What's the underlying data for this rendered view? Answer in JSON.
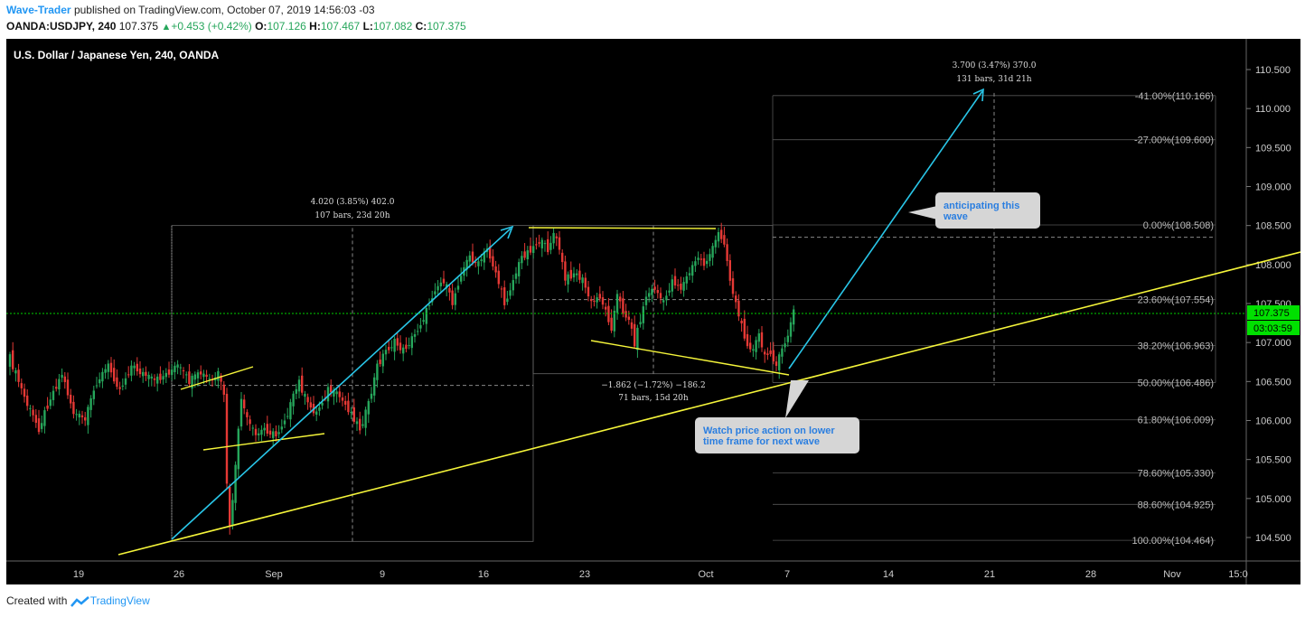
{
  "header": {
    "author": "Wave-Trader",
    "published_text": "published on TradingView.com, October 07, 2019 14:56:03 -03",
    "symbol": "OANDA:USDJPY, 240",
    "last": "107.375",
    "change": "+0.453 (+0.42%)",
    "open_label": "O:",
    "open": "107.126",
    "high_label": "H:",
    "high": "107.467",
    "low_label": "L:",
    "low": "107.082",
    "close_label": "C:",
    "close": "107.375"
  },
  "footer": {
    "created_with": "Created with",
    "brand": "TradingView"
  },
  "colors": {
    "background": "#000000",
    "up": "#26a65b",
    "down": "#e53935",
    "trend": "#f5f53a",
    "arrow": "#29c6e8",
    "price_tag": "#00e000"
  },
  "chart_data": {
    "type": "candlestick",
    "title": "U.S. Dollar / Japanese Yen, 240, OANDA",
    "y_ticks": [
      "104.500",
      "105.000",
      "105.500",
      "106.000",
      "106.500",
      "107.000",
      "107.500",
      "108.000",
      "108.500",
      "109.000",
      "109.500",
      "110.000",
      "110.500"
    ],
    "x_ticks": [
      "19",
      "26",
      "Sep",
      "9",
      "16",
      "23",
      "Oct",
      "7",
      "14",
      "21",
      "28",
      "Nov",
      "15:0"
    ],
    "ylim": [
      104.0,
      110.8
    ],
    "last_price": "107.375",
    "countdown": "03:03:59",
    "fib_levels": [
      {
        "label": "-41.00%(110.166)",
        "value": 110.166
      },
      {
        "label": "-27.00%(109.600)",
        "value": 109.6
      },
      {
        "label": "0.00%(108.508)",
        "value": 108.508
      },
      {
        "label": "23.60%(107.554)",
        "value": 107.554
      },
      {
        "label": "38.20%(106.963)",
        "value": 106.963
      },
      {
        "label": "50.00%(106.486)",
        "value": 106.486
      },
      {
        "label": "61.80%(106.009)",
        "value": 106.009
      },
      {
        "label": "78.60%(105.330)",
        "value": 105.33
      },
      {
        "label": "88.60%(104.925)",
        "value": 104.925
      },
      {
        "label": "100.00%(104.464)",
        "value": 104.464
      }
    ],
    "measures": [
      {
        "line1": "4.020 (3.85%) 402.0",
        "line2": "107 bars, 23d 20h"
      },
      {
        "line1": "−1.862 (−1.72%) −186.2",
        "line2": "71 bars, 15d 20h"
      },
      {
        "line1": "3.700 (3.47%) 370.0",
        "line2": "131 bars, 31d 21h"
      }
    ],
    "callouts": [
      {
        "text1": "anticipating this",
        "text2": "wave"
      },
      {
        "text1": "Watch price action on lower",
        "text2": "time frame for next wave"
      }
    ],
    "candle_path": [
      [
        0,
        106.8
      ],
      [
        6,
        106.2
      ],
      [
        10,
        105.9
      ],
      [
        14,
        106.3
      ],
      [
        18,
        106.6
      ],
      [
        22,
        106.1
      ],
      [
        26,
        106.0
      ],
      [
        30,
        106.5
      ],
      [
        34,
        106.7
      ],
      [
        38,
        106.4
      ],
      [
        42,
        106.7
      ],
      [
        46,
        106.6
      ],
      [
        50,
        106.5
      ],
      [
        54,
        106.6
      ],
      [
        58,
        106.7
      ],
      [
        62,
        106.5
      ],
      [
        66,
        106.6
      ],
      [
        70,
        106.5
      ],
      [
        72,
        106.6
      ],
      [
        74,
        106.3
      ],
      [
        75,
        105.2
      ],
      [
        76,
        104.6
      ],
      [
        78,
        105.4
      ],
      [
        80,
        106.3
      ],
      [
        82,
        106.0
      ],
      [
        85,
        105.8
      ],
      [
        88,
        105.9
      ],
      [
        92,
        105.8
      ],
      [
        96,
        106.1
      ],
      [
        100,
        106.5
      ],
      [
        103,
        106.2
      ],
      [
        106,
        106.1
      ],
      [
        110,
        106.4
      ],
      [
        114,
        106.3
      ],
      [
        118,
        106.1
      ],
      [
        121,
        105.9
      ],
      [
        124,
        106.2
      ],
      [
        127,
        106.7
      ],
      [
        130,
        106.9
      ],
      [
        133,
        107.0
      ],
      [
        136,
        106.9
      ],
      [
        140,
        107.1
      ],
      [
        144,
        107.4
      ],
      [
        147,
        107.7
      ],
      [
        150,
        107.8
      ],
      [
        153,
        107.5
      ],
      [
        156,
        107.9
      ],
      [
        159,
        108.1
      ],
      [
        162,
        108.0
      ],
      [
        165,
        108.2
      ],
      [
        168,
        107.9
      ],
      [
        171,
        107.5
      ],
      [
        174,
        107.8
      ],
      [
        177,
        108.1
      ],
      [
        180,
        108.2
      ],
      [
        183,
        108.3
      ],
      [
        186,
        108.2
      ],
      [
        188,
        108.4
      ],
      [
        190,
        108.2
      ],
      [
        192,
        107.8
      ],
      [
        195,
        107.9
      ],
      [
        198,
        107.8
      ],
      [
        201,
        107.5
      ],
      [
        204,
        107.6
      ],
      [
        206,
        107.4
      ],
      [
        208,
        107.2
      ],
      [
        210,
        107.6
      ],
      [
        212,
        107.4
      ],
      [
        214,
        107.3
      ],
      [
        216,
        107.0
      ],
      [
        218,
        107.3
      ],
      [
        220,
        107.6
      ],
      [
        223,
        107.7
      ],
      [
        226,
        107.5
      ],
      [
        229,
        107.8
      ],
      [
        232,
        107.7
      ],
      [
        235,
        107.9
      ],
      [
        238,
        108.1
      ],
      [
        240,
        108.0
      ],
      [
        243,
        108.2
      ],
      [
        245,
        108.4
      ],
      [
        247,
        108.3
      ],
      [
        249,
        107.8
      ],
      [
        251,
        107.5
      ],
      [
        253,
        107.2
      ],
      [
        255,
        107.0
      ],
      [
        257,
        106.9
      ],
      [
        259,
        107.1
      ],
      [
        261,
        106.8
      ],
      [
        263,
        106.9
      ],
      [
        265,
        106.7
      ],
      [
        267,
        106.9
      ],
      [
        269,
        107.1
      ],
      [
        271,
        107.4
      ]
    ]
  }
}
